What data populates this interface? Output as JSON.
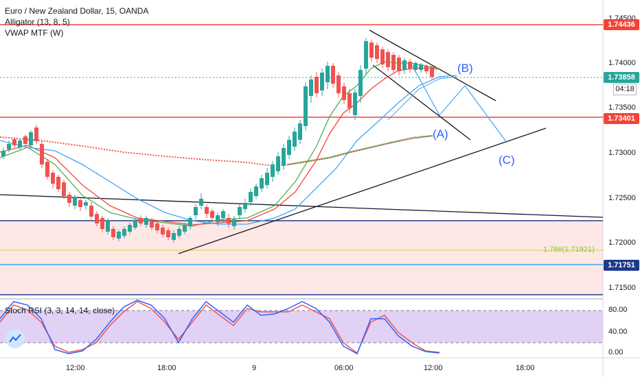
{
  "legend": {
    "symbol": "Euro / New Zealand Dollar, 15, OANDA",
    "alligator": "Alligator (13, 8, 5)",
    "vwap": "VWAP MTF (W)"
  },
  "price_axis": {
    "ticks": [
      "1.74500",
      "1.74000",
      "1.73500",
      "1.73000",
      "1.72500",
      "1.72000",
      "1.71500"
    ],
    "tags": {
      "top_resistance": "1.74436",
      "last_price": "1.73858",
      "countdown": "04:18",
      "mid_resistance": "1.73401",
      "support": "1.71751"
    }
  },
  "rsi": {
    "label": "Stoch RSI (3, 3, 14, 14, close)",
    "ticks": [
      "80.00",
      "40.00",
      "0.00"
    ]
  },
  "time_axis": {
    "ticks": [
      "12:00",
      "18:00",
      "9",
      "06:00",
      "12:00",
      "18:00"
    ]
  },
  "annotations": {
    "wave_a": "(A)",
    "wave_b": "(B)",
    "wave_c": "(C)",
    "fib": "1.786(1.71921)"
  },
  "colors": {
    "up": "#26a69a",
    "down": "#ef5350",
    "resistance": "#f44336",
    "support_line": "#1e3a8a",
    "lips": "#4caf50",
    "teeth": "#f44336",
    "jaw": "#42a5f5",
    "vwap": "#4caf50",
    "zone": "#fde8e6",
    "rsi_bg": "#e1d1f5"
  }
}
